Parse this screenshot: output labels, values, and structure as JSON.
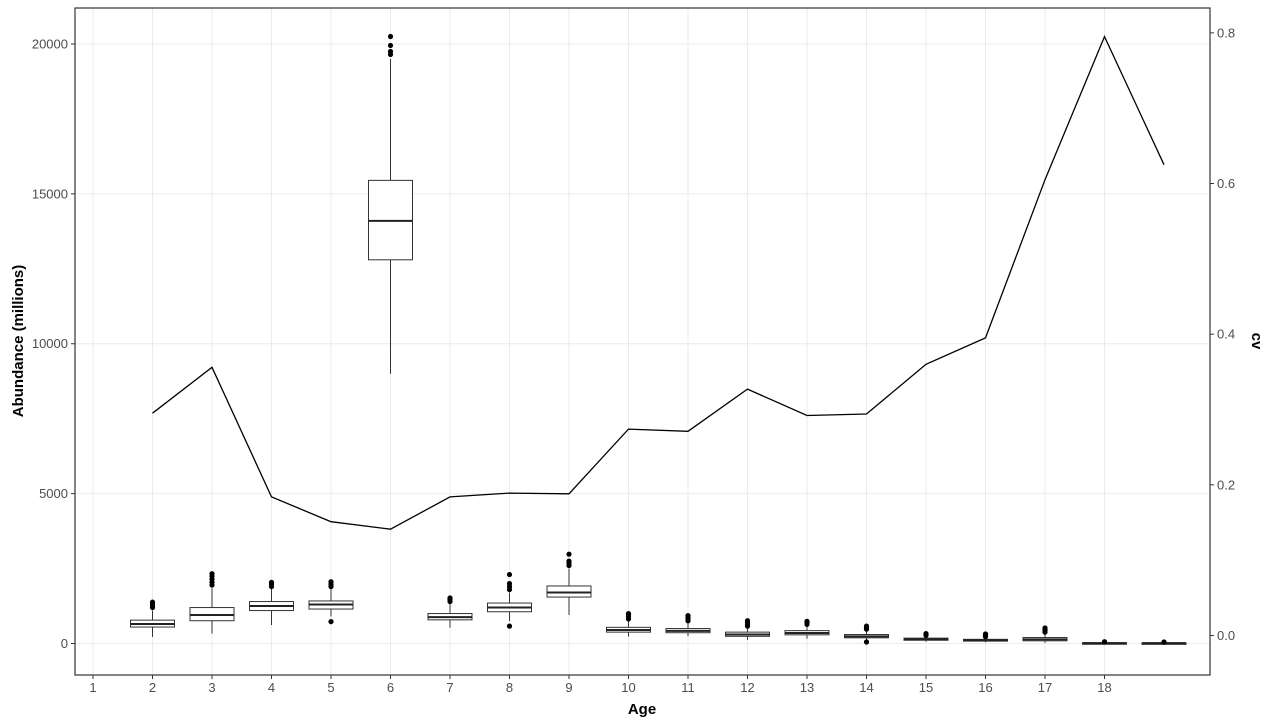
{
  "chart_data": {
    "type": "box",
    "xlabel": "Age",
    "ylabel": "Abundance (millions)",
    "y2label": "cv",
    "x_ticks": [
      "1",
      "2",
      "3",
      "4",
      "5",
      "6",
      "7",
      "8",
      "9",
      "10",
      "11",
      "12",
      "13",
      "14",
      "15",
      "16",
      "17",
      "18"
    ],
    "y_ticks": [
      "0",
      "5000",
      "10000",
      "15000",
      "20000"
    ],
    "y2_ticks": [
      "0.0",
      "0.2",
      "0.4",
      "0.6",
      "0.8"
    ],
    "ylim": [
      -1050,
      21200
    ],
    "y2lim": [
      -0.0525,
      0.833
    ],
    "grid": true,
    "series": [
      {
        "kind": "boxplot",
        "boxes": [
          {
            "slot": 2,
            "q1": 550,
            "median": 650,
            "q3": 780,
            "low": 220,
            "high": 1100,
            "outliers": [
              1200,
              1260,
              1320,
              1380
            ]
          },
          {
            "slot": 3,
            "q1": 760,
            "median": 950,
            "q3": 1200,
            "low": 330,
            "high": 1850,
            "outliers": [
              1950,
              2050,
              2150,
              2250,
              2330
            ]
          },
          {
            "slot": 4,
            "q1": 1100,
            "median": 1250,
            "q3": 1400,
            "low": 620,
            "high": 1850,
            "outliers": [
              1900,
              1980,
              2040
            ]
          },
          {
            "slot": 5,
            "q1": 1150,
            "median": 1300,
            "q3": 1420,
            "low": 900,
            "high": 1830,
            "outliers": [
              1900,
              1980,
              2060,
              730
            ]
          },
          {
            "slot": 6,
            "q1": 12800,
            "median": 14100,
            "q3": 15450,
            "low": 9000,
            "high": 19500,
            "outliers": [
              19650,
              19750,
              19950,
              20250
            ]
          },
          {
            "slot": 7,
            "q1": 790,
            "median": 880,
            "q3": 1000,
            "low": 530,
            "high": 1330,
            "outliers": [
              1400,
              1470,
              1520
            ]
          },
          {
            "slot": 8,
            "q1": 1060,
            "median": 1200,
            "q3": 1350,
            "low": 750,
            "high": 1700,
            "outliers": [
              1800,
              1900,
              2000,
              2300,
              580
            ]
          },
          {
            "slot": 9,
            "q1": 1550,
            "median": 1700,
            "q3": 1920,
            "low": 950,
            "high": 2500,
            "outliers": [
              2600,
              2680,
              2750,
              2980
            ]
          },
          {
            "slot": 10,
            "q1": 380,
            "median": 450,
            "q3": 540,
            "low": 230,
            "high": 780,
            "outliers": [
              820,
              900,
              960,
              1000
            ]
          },
          {
            "slot": 11,
            "q1": 360,
            "median": 420,
            "q3": 500,
            "low": 250,
            "high": 700,
            "outliers": [
              760,
              820,
              880,
              930
            ]
          },
          {
            "slot": 12,
            "q1": 240,
            "median": 300,
            "q3": 380,
            "low": 120,
            "high": 520,
            "outliers": [
              580,
              640,
              700,
              760
            ]
          },
          {
            "slot": 13,
            "q1": 290,
            "median": 350,
            "q3": 430,
            "low": 160,
            "high": 590,
            "outliers": [
              640,
              690,
              740
            ]
          },
          {
            "slot": 14,
            "q1": 190,
            "median": 240,
            "q3": 300,
            "low": 100,
            "high": 430,
            "outliers": [
              480,
              530,
              580,
              50
            ]
          },
          {
            "slot": 15,
            "q1": 110,
            "median": 140,
            "q3": 180,
            "low": 60,
            "high": 240,
            "outliers": [
              270,
              300,
              330
            ]
          },
          {
            "slot": 16,
            "q1": 80,
            "median": 110,
            "q3": 140,
            "low": 40,
            "high": 200,
            "outliers": [
              230,
              260,
              290,
              320
            ]
          },
          {
            "slot": 17,
            "q1": 90,
            "median": 140,
            "q3": 200,
            "low": 20,
            "high": 330,
            "outliers": [
              380,
              430,
              480,
              520
            ]
          },
          {
            "slot": 18,
            "q1": 5,
            "median": 15,
            "q3": 25,
            "low": 0,
            "high": 40,
            "outliers": [
              60
            ]
          },
          {
            "slot": 19,
            "q1": 5,
            "median": 12,
            "q3": 22,
            "low": 0,
            "high": 35,
            "outliers": [
              50
            ]
          }
        ]
      },
      {
        "kind": "line",
        "axis": "right",
        "x": [
          2,
          3,
          4,
          5,
          6,
          7,
          8,
          9,
          10,
          11,
          12,
          13,
          14,
          15,
          16,
          17,
          18,
          19
        ],
        "values": [
          0.295,
          0.356,
          0.184,
          0.151,
          0.141,
          0.184,
          0.189,
          0.188,
          0.274,
          0.271,
          0.327,
          0.292,
          0.294,
          0.36,
          0.395,
          0.605,
          0.795,
          0.625
        ]
      }
    ]
  }
}
